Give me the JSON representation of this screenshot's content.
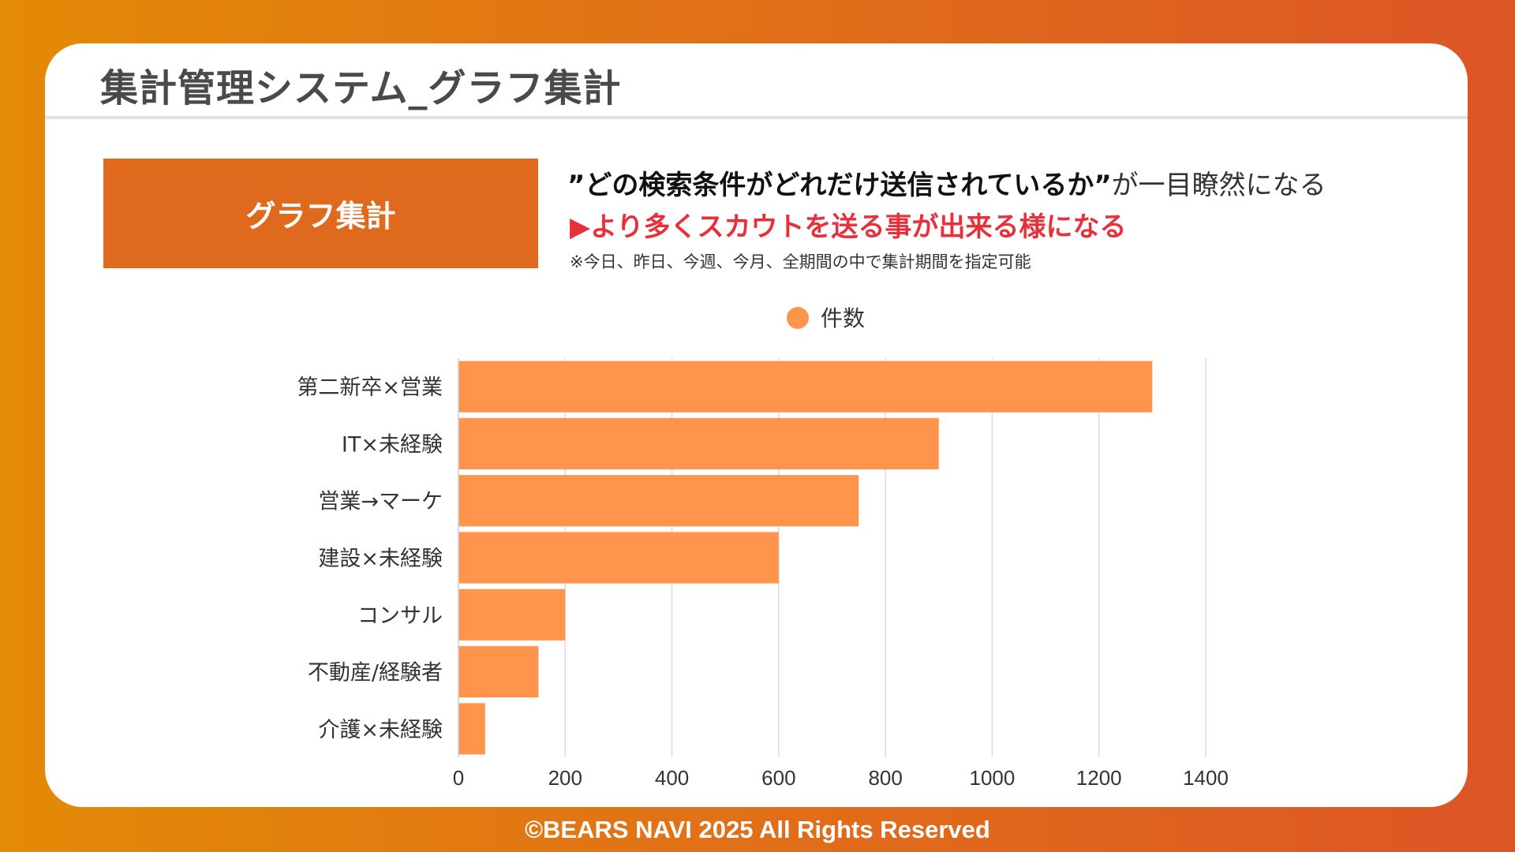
{
  "slide": {
    "title": "集計管理システム_グラフ集計",
    "section_label": "グラフ集計",
    "headline_bold": "”どの検索条件がどれだけ送信されているか”",
    "headline_rest": "が一目瞭然になる",
    "subline": "▶より多くスカウトを送る事が出来る様になる",
    "note": "※今日、昨日、今週、今月、全期間の中で集計期間を指定可能",
    "footer": "©BEARS NAVI 2025 All Rights Reserved"
  },
  "colors": {
    "accent": "#df6a1d",
    "bar": "#ff944d",
    "highlight_red": "#e8303a",
    "grid": "#dcdcdc"
  },
  "chart_data": {
    "type": "bar",
    "orientation": "horizontal",
    "categories": [
      "第二新卒×営業",
      "IT×未経験",
      "営業→マーケ",
      "建設×未経験",
      "コンサル",
      "不動産/経験者",
      "介護×未経験"
    ],
    "series": [
      {
        "name": "件数",
        "values": [
          1300,
          900,
          750,
          600,
          200,
          150,
          50
        ]
      }
    ],
    "x_ticks": [
      "0",
      "200",
      "400",
      "600",
      "800",
      "1000",
      "1200",
      "1400"
    ],
    "xlim": [
      0,
      1400
    ],
    "grid": true,
    "legend_position": "top"
  }
}
